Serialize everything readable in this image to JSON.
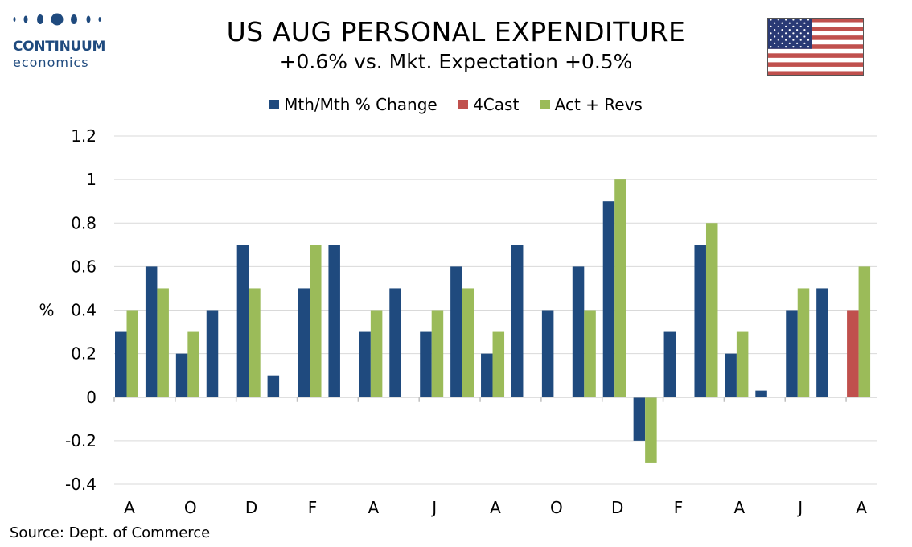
{
  "header": {
    "logo_line1": "CONTINUUM",
    "logo_line2": "economics",
    "title": "US AUG PERSONAL EXPENDITURE",
    "subtitle": "+0.6% vs. Mkt. Expectation +0.5%",
    "flag_icon": "us-flag-icon"
  },
  "footer": {
    "source": "Source: Dept. of Commerce"
  },
  "colors": {
    "mth": "#1f4a7e",
    "forecast": "#c0504d",
    "act": "#9bbb59",
    "grid": "#d9d9d9",
    "logo": "#1f4a7e"
  },
  "chart_data": {
    "type": "bar",
    "ylabel": "%",
    "ylim": [
      -0.4,
      1.2
    ],
    "yticks": [
      "1.2",
      "1",
      "0.8",
      "0.6",
      "0.4",
      "0.2",
      "0",
      "-0.2",
      "-0.4"
    ],
    "grid": true,
    "legend_position": "top",
    "x_tick_labels": [
      "A",
      "O",
      "D",
      "F",
      "A",
      "J",
      "A",
      "O",
      "D",
      "F",
      "A",
      "J",
      "A"
    ],
    "series": [
      {
        "name": "Mth/Mth % Change",
        "values": [
          0.3,
          0.6,
          0.2,
          0.4,
          0.7,
          0.1,
          0.5,
          0.7,
          0.3,
          0.5,
          0.3,
          0.6,
          0.2,
          0.7,
          0.4,
          0.6,
          0.9,
          -0.2,
          0.3,
          0.7,
          0.2,
          0.03,
          0.4,
          0.5,
          null
        ]
      },
      {
        "name": "4Cast",
        "values": [
          null,
          null,
          null,
          null,
          null,
          null,
          null,
          null,
          null,
          null,
          null,
          null,
          null,
          null,
          null,
          null,
          null,
          null,
          null,
          null,
          null,
          null,
          null,
          null,
          0.4
        ]
      },
      {
        "name": "Act + Revs",
        "values": [
          0.4,
          0.5,
          0.3,
          null,
          0.5,
          null,
          0.7,
          null,
          0.4,
          null,
          0.4,
          0.5,
          0.3,
          null,
          null,
          0.4,
          1.0,
          -0.3,
          null,
          0.8,
          0.3,
          null,
          0.5,
          null,
          0.6
        ]
      }
    ]
  }
}
